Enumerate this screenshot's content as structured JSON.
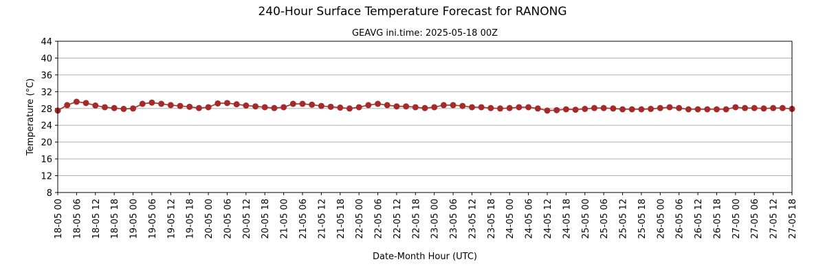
{
  "chart_data": {
    "type": "line",
    "title": "240-Hour Surface Temperature Forecast for RANONG",
    "subtitle": "GEAVG ini.time: 2025-05-18 00Z",
    "xlabel": "Date-Month Hour (UTC)",
    "ylabel": "Temperature (°C)",
    "ylim": [
      8,
      44
    ],
    "yticks": [
      8,
      12,
      16,
      20,
      24,
      28,
      32,
      36,
      40,
      44
    ],
    "grid": "horizontal",
    "x_tick_labels": [
      "18-05 00",
      "18-05 06",
      "18-05 12",
      "18-05 18",
      "19-05 00",
      "19-05 06",
      "19-05 12",
      "19-05 18",
      "20-05 00",
      "20-05 06",
      "20-05 12",
      "20-05 18",
      "21-05 00",
      "21-05 06",
      "21-05 12",
      "21-05 18",
      "22-05 00",
      "22-05 06",
      "22-05 12",
      "22-05 18",
      "23-05 00",
      "23-05 06",
      "23-05 12",
      "23-05 18",
      "24-05 00",
      "24-05 06",
      "24-05 12",
      "24-05 18",
      "25-05 00",
      "25-05 06",
      "25-05 12",
      "25-05 18",
      "26-05 00",
      "26-05 06",
      "26-05 12",
      "26-05 18",
      "27-05 00",
      "27-05 06",
      "27-05 12",
      "27-05 18"
    ],
    "series": [
      {
        "color": "#a52a2a",
        "values": [
          27.5,
          28.8,
          29.6,
          29.3,
          28.7,
          28.3,
          28.1,
          27.9,
          28.0,
          29.1,
          29.4,
          29.1,
          28.8,
          28.6,
          28.4,
          28.1,
          28.3,
          29.2,
          29.3,
          29.0,
          28.7,
          28.5,
          28.3,
          28.1,
          28.3,
          29.1,
          29.1,
          28.9,
          28.6,
          28.4,
          28.2,
          28.0,
          28.3,
          28.8,
          29.1,
          28.8,
          28.5,
          28.5,
          28.3,
          28.1,
          28.3,
          28.8,
          28.8,
          28.6,
          28.3,
          28.3,
          28.1,
          28.0,
          28.1,
          28.3,
          28.3,
          28.0,
          27.5,
          27.6,
          27.8,
          27.7,
          27.9,
          28.1,
          28.1,
          28.0,
          27.8,
          27.8,
          27.8,
          27.9,
          28.1,
          28.3,
          28.1,
          27.8,
          27.8,
          27.8,
          27.8,
          27.8,
          28.3,
          28.1,
          28.1,
          28.0,
          28.1,
          28.1,
          27.9
        ]
      }
    ]
  }
}
